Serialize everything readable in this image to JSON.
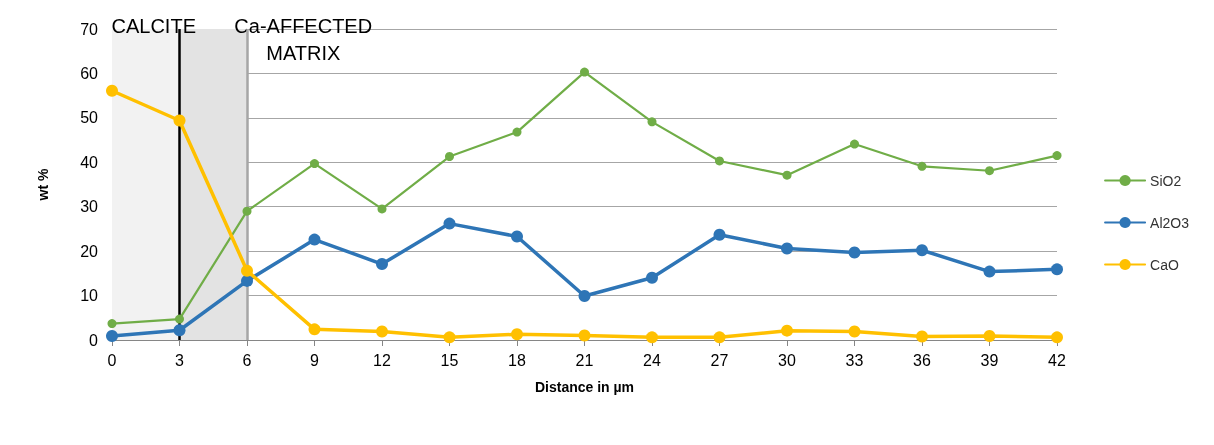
{
  "chart_data": {
    "type": "line",
    "xlabel": "Distance in µm",
    "ylabel": "wt %",
    "x": [
      0,
      3,
      6,
      9,
      12,
      15,
      18,
      21,
      24,
      27,
      30,
      33,
      36,
      39,
      42
    ],
    "xlim": [
      0,
      42
    ],
    "xticks": [
      0,
      3,
      6,
      9,
      12,
      15,
      18,
      21,
      24,
      27,
      30,
      33,
      36,
      39,
      42
    ],
    "ylim": [
      0,
      70
    ],
    "yticks": [
      0,
      10,
      20,
      30,
      40,
      50,
      60,
      70
    ],
    "grid": "y",
    "legend": "right",
    "marker": "circle",
    "line_style": "solid",
    "series": [
      {
        "name": "SiO2",
        "color": "#70ad47",
        "values": [
          3.7,
          4.7,
          29,
          39.7,
          29.5,
          41.3,
          46.8,
          60.3,
          49.1,
          40.3,
          37.1,
          44.1,
          39.1,
          38.1,
          41.5
        ]
      },
      {
        "name": "Al2O3",
        "color": "#2e75b6",
        "values": [
          0.9,
          2.2,
          13.3,
          22.6,
          17.1,
          26.2,
          23.3,
          9.9,
          14,
          23.7,
          20.6,
          19.7,
          20.2,
          15.4,
          15.9
        ]
      },
      {
        "name": "CaO",
        "color": "#ffc000",
        "values": [
          56.1,
          49.4,
          15.6,
          2.4,
          1.9,
          0.6,
          1.3,
          1.0,
          0.6,
          0.6,
          2.1,
          1.9,
          0.8,
          0.9,
          0.6
        ]
      }
    ],
    "bands": [
      {
        "axis": "x",
        "from": 0,
        "to": 3,
        "label": "CALCITE",
        "color": "#f2f2f2"
      },
      {
        "axis": "x",
        "from": 3,
        "to": 6,
        "label": "Ca-AFFECTED\nMATRIX",
        "color": "#e3e3e3"
      }
    ],
    "ref_lines": [
      {
        "axis": "x",
        "value": 3,
        "color": "#000000"
      },
      {
        "axis": "x",
        "value": 6,
        "color": "#a6a6a6"
      }
    ]
  }
}
